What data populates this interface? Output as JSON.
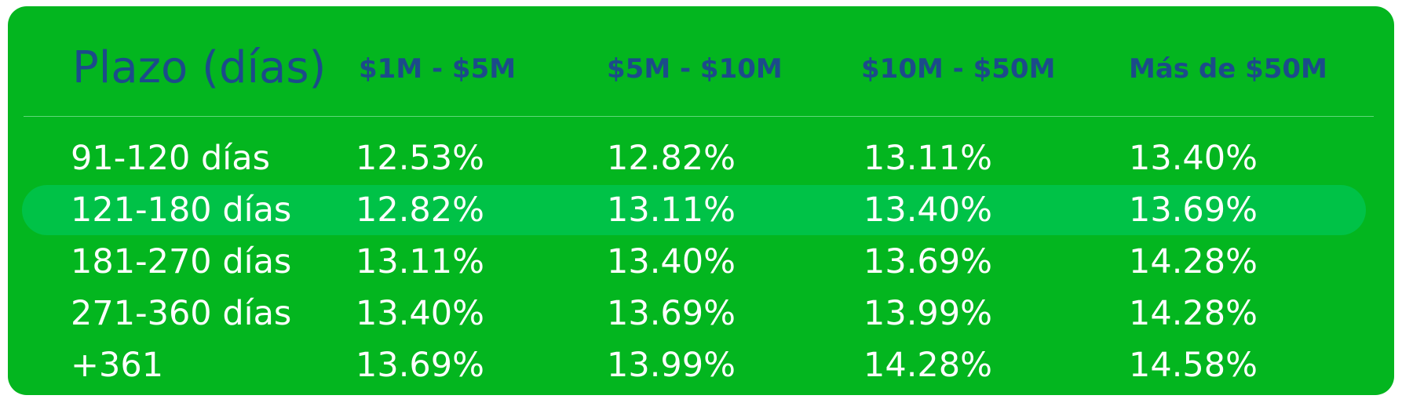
{
  "table": {
    "header": {
      "title": "Plazo (días)",
      "columns": [
        "$1M - $5M",
        "$5M - $10M",
        "$10M - $50M",
        "Más de $50M"
      ]
    },
    "rows": [
      {
        "term": "91-120 días",
        "rates": [
          "12.53%",
          "12.82%",
          "13.11%",
          "13.40%"
        ],
        "highlighted": false
      },
      {
        "term": "121-180 días",
        "rates": [
          "12.82%",
          "13.11%",
          "13.40%",
          "13.69%"
        ],
        "highlighted": true
      },
      {
        "term": "181-270 días",
        "rates": [
          "13.11%",
          "13.40%",
          "13.69%",
          "14.28%"
        ],
        "highlighted": false
      },
      {
        "term": "271-360 días",
        "rates": [
          "13.40%",
          "13.69%",
          "13.99%",
          "14.28%"
        ],
        "highlighted": false
      },
      {
        "term": "+361",
        "rates": [
          "13.69%",
          "13.99%",
          "14.28%",
          "14.58%"
        ],
        "highlighted": false
      }
    ]
  },
  "colors": {
    "background": "#03b61f",
    "highlight_row": "#00c247",
    "header_text": "#1c4b8a",
    "body_text": "#ffffff"
  }
}
